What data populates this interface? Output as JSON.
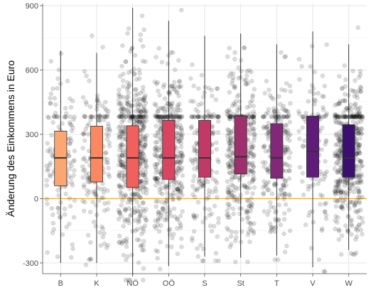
{
  "chart_data": {
    "type": "boxplot",
    "ylabel": "Änderung des Einkommens in Euro",
    "xlabel": "",
    "ylim": [
      -350,
      910
    ],
    "yticks": [
      -300,
      0,
      300,
      600,
      900
    ],
    "categories": [
      "B",
      "K",
      "NÖ",
      "OÖ",
      "S",
      "St",
      "T",
      "V",
      "W"
    ],
    "boxes": [
      {
        "category": "B",
        "min": -300,
        "q1": 60,
        "median": 190,
        "q3": 315,
        "max": 690,
        "color": "#FCA771",
        "n": 140
      },
      {
        "category": "K",
        "min": -300,
        "q1": 78,
        "median": 190,
        "q3": 338,
        "max": 680,
        "color": "#FB8861",
        "n": 170
      },
      {
        "category": "NÖ",
        "min": -360,
        "q1": 52,
        "median": 190,
        "q3": 340,
        "max": 890,
        "color": "#F1605D",
        "n": 520
      },
      {
        "category": "OÖ",
        "min": -315,
        "q1": 90,
        "median": 190,
        "q3": 365,
        "max": 830,
        "color": "#DA4460",
        "n": 420
      },
      {
        "category": "S",
        "min": -270,
        "q1": 100,
        "median": 190,
        "q3": 365,
        "max": 760,
        "color": "#C13A67",
        "n": 190
      },
      {
        "category": "St",
        "min": -275,
        "q1": 115,
        "median": 195,
        "q3": 385,
        "max": 770,
        "color": "#A0306D",
        "n": 380
      },
      {
        "category": "T",
        "min": -265,
        "q1": 95,
        "median": 190,
        "q3": 350,
        "max": 720,
        "color": "#822879",
        "n": 240
      },
      {
        "category": "V",
        "min": -320,
        "q1": 100,
        "median": 220,
        "q3": 385,
        "max": 780,
        "color": "#5F1D79",
        "n": 120
      },
      {
        "category": "W",
        "min": -240,
        "q1": 100,
        "median": 190,
        "q3": 345,
        "max": 720,
        "color": "#3B0F6F",
        "n": 460
      }
    ],
    "reference_line": {
      "y": 0,
      "color": "#F5A623"
    },
    "jitter_points": {
      "color": "#000000",
      "opacity": 0.14
    },
    "grid": true,
    "legend": "none"
  }
}
